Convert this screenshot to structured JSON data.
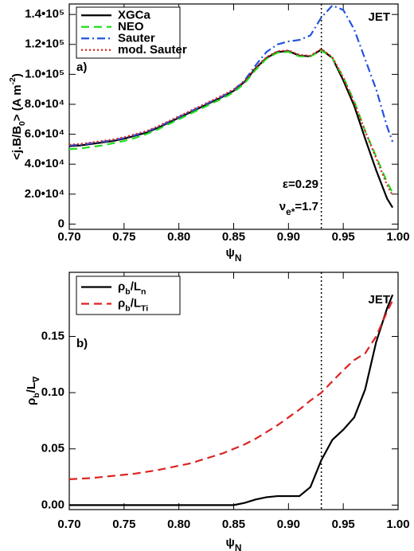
{
  "chart_data": [
    {
      "type": "line",
      "panel_label": "a)",
      "tag": "JET",
      "legend": "upper left",
      "x_label": [
        {
          "text": "ψ",
          "sub": "N"
        }
      ],
      "y_label": [
        {
          "text": "<j.B/B",
          "sub": "0"
        },
        {
          "text": "> (A m",
          "sup": "-2"
        },
        {
          "text": ")"
        }
      ],
      "annotations": [
        [
          {
            "text": "ε=0.29"
          }
        ],
        [
          {
            "text": "ν",
            "sub": "e*"
          },
          {
            "text": "=1.7"
          }
        ]
      ],
      "vline": 0.93,
      "xlim": [
        0.7,
        1.0
      ],
      "ylim": [
        -3500,
        147000
      ],
      "xticks": [
        {
          "value": 0.7,
          "label": "0.70"
        },
        {
          "value": 0.75,
          "label": "0.75"
        },
        {
          "value": 0.8,
          "label": "0.80"
        },
        {
          "value": 0.85,
          "label": "0.85"
        },
        {
          "value": 0.9,
          "label": "0.90"
        },
        {
          "value": 0.95,
          "label": "0.95"
        },
        {
          "value": 1.0,
          "label": "1.00"
        }
      ],
      "yticks": [
        0,
        {
          "value": 20000,
          "label": "2.0•10⁴"
        },
        {
          "value": 40000,
          "label": "4.0•10⁴"
        },
        {
          "value": 60000,
          "label": "6.0•10⁴"
        },
        {
          "value": 80000,
          "label": "8.0•10⁴"
        },
        {
          "value": 100000,
          "label": "1.0•10⁵"
        },
        {
          "value": 120000,
          "label": "1.2•10⁵"
        },
        {
          "value": 140000,
          "label": "1.4•10⁵"
        }
      ],
      "x": [
        0.7,
        0.71,
        0.72,
        0.73,
        0.74,
        0.75,
        0.76,
        0.77,
        0.78,
        0.79,
        0.8,
        0.81,
        0.82,
        0.83,
        0.84,
        0.85,
        0.86,
        0.87,
        0.88,
        0.89,
        0.9,
        0.91,
        0.92,
        0.93,
        0.94,
        0.95,
        0.96,
        0.97,
        0.98,
        0.99,
        0.995
      ],
      "series": [
        {
          "name": [
            {
              "text": "XGCa"
            }
          ],
          "color": "#000000",
          "linestyle": "solid",
          "values": [
            52000,
            52500,
            53500,
            54500,
            55500,
            57000,
            59000,
            61000,
            64000,
            67500,
            71000,
            74500,
            78000,
            81500,
            85000,
            89000,
            95000,
            104000,
            111000,
            115000,
            115500,
            112500,
            112000,
            116500,
            111000,
            96000,
            79000,
            57000,
            36000,
            17000,
            11000
          ]
        },
        {
          "name": [
            {
              "text": "NEO"
            }
          ],
          "color": "#22dd22",
          "linestyle": "dashed",
          "values": [
            50000,
            50500,
            51500,
            52500,
            54000,
            55500,
            57500,
            60000,
            63000,
            66500,
            70000,
            73500,
            77000,
            80500,
            84000,
            88000,
            94000,
            103000,
            110500,
            114500,
            115000,
            112000,
            112000,
            116000,
            111000,
            98000,
            82000,
            62000,
            45000,
            28000,
            21000
          ]
        },
        {
          "name": [
            {
              "text": "Sauter"
            }
          ],
          "color": "#2255dd",
          "linestyle": "dashdot",
          "values": [
            52500,
            53000,
            54000,
            55000,
            56000,
            57500,
            59500,
            61500,
            64500,
            68000,
            71500,
            75000,
            78500,
            82000,
            85500,
            89500,
            96000,
            106000,
            115000,
            120000,
            122000,
            123000,
            126000,
            138000,
            146000,
            143000,
            130000,
            110000,
            90000,
            65000,
            55000
          ]
        },
        {
          "name": [
            {
              "text": "mod. Sauter"
            }
          ],
          "color": "#dd2222",
          "linestyle": "dotted",
          "values": [
            53000,
            53500,
            54500,
            55500,
            56500,
            58000,
            60000,
            62000,
            65000,
            68500,
            72000,
            75500,
            79000,
            82500,
            86000,
            90000,
            95500,
            104500,
            111500,
            115500,
            116000,
            113000,
            112500,
            117000,
            111500,
            98000,
            81000,
            62000,
            44000,
            26000,
            19000
          ]
        }
      ]
    },
    {
      "type": "line",
      "panel_label": "b)",
      "tag": "JET",
      "legend": "upper left",
      "x_label": [
        {
          "text": "ψ",
          "sub": "N"
        }
      ],
      "y_label": [
        {
          "text": "ρ",
          "sub": "b"
        },
        {
          "text": "/L",
          "sub": "∇"
        }
      ],
      "vline": 0.93,
      "xlim": [
        0.7,
        1.0
      ],
      "ylim": [
        -0.004,
        0.207
      ],
      "xticks": [
        {
          "value": 0.7,
          "label": "0.70"
        },
        {
          "value": 0.75,
          "label": "0.75"
        },
        {
          "value": 0.8,
          "label": "0.80"
        },
        {
          "value": 0.85,
          "label": "0.85"
        },
        {
          "value": 0.9,
          "label": "0.90"
        },
        {
          "value": 0.95,
          "label": "0.95"
        },
        {
          "value": 1.0,
          "label": "1.00"
        }
      ],
      "yticks": [
        {
          "value": 0,
          "label": "0.00"
        },
        {
          "value": 0.05,
          "label": "0.05"
        },
        {
          "value": 0.1,
          "label": "0.10"
        },
        {
          "value": 0.15,
          "label": "0.15"
        }
      ],
      "x": [
        0.7,
        0.71,
        0.72,
        0.73,
        0.74,
        0.75,
        0.76,
        0.77,
        0.78,
        0.79,
        0.8,
        0.81,
        0.82,
        0.83,
        0.84,
        0.85,
        0.86,
        0.87,
        0.88,
        0.89,
        0.9,
        0.91,
        0.92,
        0.93,
        0.94,
        0.95,
        0.96,
        0.97,
        0.98,
        0.99,
        0.995
      ],
      "series": [
        {
          "name": [
            {
              "text": "ρ",
              "sub": "b"
            },
            {
              "text": "/L",
              "sub": "n"
            }
          ],
          "color": "#000000",
          "linestyle": "solid",
          "values": [
            0,
            0,
            0,
            0,
            0,
            0,
            0,
            0,
            0,
            0,
            0,
            0,
            0,
            0,
            0,
            0,
            0.002,
            0.005,
            0.007,
            0.008,
            0.008,
            0.008,
            0.016,
            0.04,
            0.058,
            0.067,
            0.078,
            0.103,
            0.145,
            0.175,
            0.187
          ]
        },
        {
          "name": [
            {
              "text": "ρ",
              "sub": "b"
            },
            {
              "text": "/L",
              "sub": "Ti"
            }
          ],
          "color": "#dd2222",
          "linestyle": "dashed",
          "values": [
            0.023,
            0.0235,
            0.024,
            0.025,
            0.026,
            0.027,
            0.028,
            0.0295,
            0.031,
            0.033,
            0.035,
            0.037,
            0.04,
            0.043,
            0.046,
            0.05,
            0.054,
            0.059,
            0.065,
            0.071,
            0.078,
            0.085,
            0.093,
            0.1,
            0.11,
            0.12,
            0.129,
            0.135,
            0.15,
            0.172,
            0.182
          ]
        }
      ]
    }
  ]
}
